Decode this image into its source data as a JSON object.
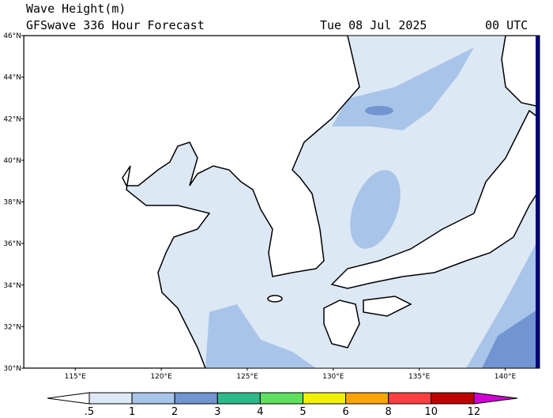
{
  "header": {
    "title": "Wave Height(m)",
    "subtitle": "GFSwave 336 Hour Forecast",
    "date": "Tue 08 Jul 2025",
    "time": "00 UTC"
  },
  "map": {
    "lat_ticks": [
      {
        "value": 46,
        "label": "46°N"
      },
      {
        "value": 44,
        "label": "44°N"
      },
      {
        "value": 42,
        "label": "42°N"
      },
      {
        "value": 40,
        "label": "40°N"
      },
      {
        "value": 38,
        "label": "38°N"
      },
      {
        "value": 36,
        "label": "36°N"
      },
      {
        "value": 34,
        "label": "34°N"
      },
      {
        "value": 32,
        "label": "32°N"
      },
      {
        "value": 30,
        "label": "30°N"
      }
    ],
    "lon_ticks": [
      {
        "value": 115,
        "label": "115°E"
      },
      {
        "value": 120,
        "label": "120°E"
      },
      {
        "value": 125,
        "label": "125°E"
      },
      {
        "value": 130,
        "label": "130°E"
      },
      {
        "value": 135,
        "label": "135°E"
      },
      {
        "value": 140,
        "label": "140°E"
      }
    ],
    "latlim": [
      30,
      46
    ],
    "lonlim": [
      112,
      142
    ]
  },
  "colorbar": {
    "levels": [
      {
        "value": 0.5,
        "label": ".5"
      },
      1,
      2,
      3,
      4,
      5,
      6,
      8,
      10,
      12
    ],
    "colors": [
      "#ffffff",
      "#dde8f5",
      "#a8c4e8",
      "#7095d0",
      "#2fb88a",
      "#60e060",
      "#f0f000",
      "#ffa500",
      "#ff4040",
      "#c00000",
      "#d000d0"
    ]
  }
}
